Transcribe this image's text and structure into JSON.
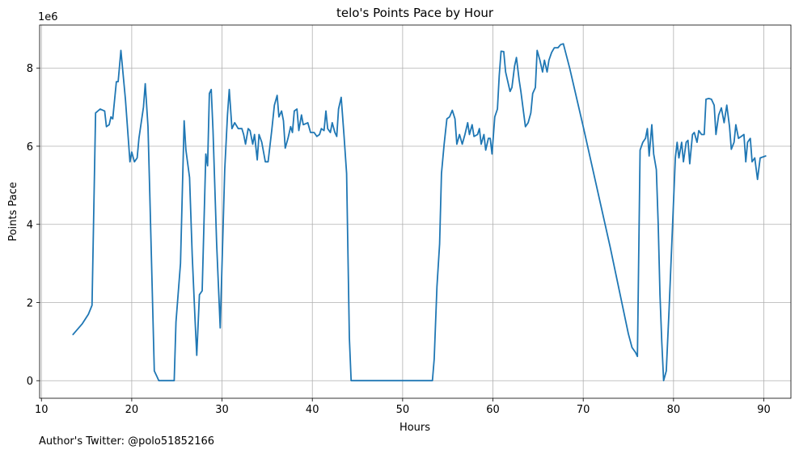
{
  "chart_data": {
    "type": "line",
    "title": "telo's Points Pace by Hour",
    "xlabel": "Hours",
    "ylabel": "Points Pace",
    "y_scale_label": "1e6",
    "xlim": [
      9.8,
      93.0
    ],
    "ylim": [
      -0.45,
      9.1
    ],
    "x_ticks": [
      10,
      20,
      30,
      40,
      50,
      60,
      70,
      80,
      90
    ],
    "y_ticks": [
      0,
      2,
      4,
      6,
      8
    ],
    "grid": true,
    "line_color": "#1f77b4",
    "series": [
      {
        "values_unit": "millions",
        "points": [
          [
            13.5,
            1.18
          ],
          [
            14.5,
            1.45
          ],
          [
            15.2,
            1.7
          ],
          [
            15.6,
            1.93
          ],
          [
            16.0,
            6.85
          ],
          [
            16.5,
            6.95
          ],
          [
            17.0,
            6.9
          ],
          [
            17.2,
            6.5
          ],
          [
            17.5,
            6.55
          ],
          [
            17.7,
            6.75
          ],
          [
            17.9,
            6.7
          ],
          [
            18.3,
            7.65
          ],
          [
            18.5,
            7.65
          ],
          [
            18.8,
            8.45
          ],
          [
            19.3,
            7.2
          ],
          [
            19.8,
            5.6
          ],
          [
            20.0,
            5.85
          ],
          [
            20.3,
            5.6
          ],
          [
            20.6,
            5.7
          ],
          [
            20.8,
            6.2
          ],
          [
            21.3,
            7.0
          ],
          [
            21.5,
            7.6
          ],
          [
            21.8,
            6.5
          ],
          [
            22.0,
            4.8
          ],
          [
            22.5,
            0.25
          ],
          [
            22.8,
            0.1
          ],
          [
            23.0,
            0.0
          ],
          [
            24.0,
            0.0
          ],
          [
            24.7,
            0.0
          ],
          [
            24.9,
            1.5
          ],
          [
            25.4,
            3.0
          ],
          [
            25.8,
            6.65
          ],
          [
            26.0,
            5.9
          ],
          [
            26.4,
            5.2
          ],
          [
            26.7,
            3.2
          ],
          [
            27.0,
            1.6
          ],
          [
            27.2,
            0.65
          ],
          [
            27.5,
            2.2
          ],
          [
            27.8,
            2.3
          ],
          [
            28.2,
            5.8
          ],
          [
            28.4,
            5.5
          ],
          [
            28.6,
            7.35
          ],
          [
            28.8,
            7.45
          ],
          [
            29.0,
            6.4
          ],
          [
            29.4,
            3.5
          ],
          [
            29.8,
            1.35
          ],
          [
            30.3,
            5.4
          ],
          [
            30.6,
            6.8
          ],
          [
            30.8,
            7.45
          ],
          [
            31.1,
            6.45
          ],
          [
            31.4,
            6.6
          ],
          [
            31.8,
            6.45
          ],
          [
            32.2,
            6.45
          ],
          [
            32.4,
            6.3
          ],
          [
            32.6,
            6.05
          ],
          [
            32.9,
            6.45
          ],
          [
            33.1,
            6.4
          ],
          [
            33.4,
            6.05
          ],
          [
            33.6,
            6.3
          ],
          [
            33.9,
            5.65
          ],
          [
            34.1,
            6.3
          ],
          [
            34.4,
            6.1
          ],
          [
            34.8,
            5.6
          ],
          [
            35.1,
            5.6
          ],
          [
            35.5,
            6.4
          ],
          [
            35.8,
            7.05
          ],
          [
            36.1,
            7.3
          ],
          [
            36.3,
            6.75
          ],
          [
            36.6,
            6.9
          ],
          [
            36.8,
            6.65
          ],
          [
            37.0,
            5.95
          ],
          [
            37.3,
            6.2
          ],
          [
            37.6,
            6.5
          ],
          [
            37.8,
            6.35
          ],
          [
            38.0,
            6.9
          ],
          [
            38.3,
            6.95
          ],
          [
            38.5,
            6.4
          ],
          [
            38.8,
            6.8
          ],
          [
            39.0,
            6.55
          ],
          [
            39.5,
            6.6
          ],
          [
            39.8,
            6.35
          ],
          [
            40.2,
            6.35
          ],
          [
            40.5,
            6.25
          ],
          [
            40.8,
            6.3
          ],
          [
            41.0,
            6.45
          ],
          [
            41.3,
            6.4
          ],
          [
            41.5,
            6.9
          ],
          [
            41.7,
            6.45
          ],
          [
            42.0,
            6.35
          ],
          [
            42.2,
            6.6
          ],
          [
            42.5,
            6.35
          ],
          [
            42.7,
            6.25
          ],
          [
            42.9,
            6.95
          ],
          [
            43.2,
            7.25
          ],
          [
            43.5,
            6.3
          ],
          [
            43.8,
            5.3
          ],
          [
            44.1,
            1.1
          ],
          [
            44.3,
            0.0
          ],
          [
            50.0,
            0.0
          ],
          [
            53.3,
            0.0
          ],
          [
            53.5,
            0.55
          ],
          [
            53.8,
            2.4
          ],
          [
            54.1,
            3.5
          ],
          [
            54.3,
            5.3
          ],
          [
            54.6,
            6.05
          ],
          [
            54.9,
            6.7
          ],
          [
            55.2,
            6.75
          ],
          [
            55.5,
            6.92
          ],
          [
            55.8,
            6.7
          ],
          [
            56.0,
            6.05
          ],
          [
            56.3,
            6.3
          ],
          [
            56.6,
            6.05
          ],
          [
            56.9,
            6.3
          ],
          [
            57.2,
            6.6
          ],
          [
            57.4,
            6.3
          ],
          [
            57.7,
            6.55
          ],
          [
            57.9,
            6.25
          ],
          [
            58.3,
            6.3
          ],
          [
            58.5,
            6.45
          ],
          [
            58.7,
            6.05
          ],
          [
            59.0,
            6.3
          ],
          [
            59.2,
            5.9
          ],
          [
            59.5,
            6.2
          ],
          [
            59.7,
            6.2
          ],
          [
            59.9,
            5.8
          ],
          [
            60.2,
            6.75
          ],
          [
            60.5,
            6.95
          ],
          [
            60.7,
            7.8
          ],
          [
            60.9,
            8.43
          ],
          [
            61.2,
            8.42
          ],
          [
            61.4,
            7.9
          ],
          [
            61.9,
            7.4
          ],
          [
            62.1,
            7.5
          ],
          [
            62.4,
            8.05
          ],
          [
            62.6,
            8.27
          ],
          [
            62.9,
            7.7
          ],
          [
            63.1,
            7.4
          ],
          [
            63.4,
            6.85
          ],
          [
            63.6,
            6.5
          ],
          [
            63.9,
            6.6
          ],
          [
            64.2,
            6.85
          ],
          [
            64.4,
            7.35
          ],
          [
            64.7,
            7.5
          ],
          [
            64.9,
            8.45
          ],
          [
            65.2,
            8.2
          ],
          [
            65.5,
            7.9
          ],
          [
            65.7,
            8.2
          ],
          [
            66.0,
            7.9
          ],
          [
            66.2,
            8.2
          ],
          [
            66.5,
            8.4
          ],
          [
            66.8,
            8.52
          ],
          [
            67.2,
            8.52
          ],
          [
            67.5,
            8.6
          ],
          [
            67.8,
            8.62
          ],
          [
            68.5,
            8.0
          ],
          [
            70.0,
            6.5
          ],
          [
            73.0,
            3.4
          ],
          [
            75.0,
            1.2
          ],
          [
            75.4,
            0.85
          ],
          [
            75.8,
            0.72
          ],
          [
            76.0,
            0.62
          ],
          [
            76.3,
            5.9
          ],
          [
            76.6,
            6.1
          ],
          [
            76.9,
            6.2
          ],
          [
            77.1,
            6.45
          ],
          [
            77.3,
            5.75
          ],
          [
            77.6,
            6.55
          ],
          [
            77.8,
            5.8
          ],
          [
            78.1,
            5.4
          ],
          [
            78.3,
            4.0
          ],
          [
            78.5,
            2.2
          ],
          [
            78.7,
            1.0
          ],
          [
            78.9,
            0.0
          ],
          [
            79.2,
            0.25
          ],
          [
            79.5,
            1.8
          ],
          [
            79.9,
            4.0
          ],
          [
            80.2,
            5.7
          ],
          [
            80.4,
            6.1
          ],
          [
            80.6,
            5.7
          ],
          [
            80.9,
            6.1
          ],
          [
            81.1,
            5.6
          ],
          [
            81.4,
            6.1
          ],
          [
            81.6,
            6.15
          ],
          [
            81.8,
            5.55
          ],
          [
            82.1,
            6.3
          ],
          [
            82.3,
            6.35
          ],
          [
            82.6,
            6.1
          ],
          [
            82.8,
            6.4
          ],
          [
            83.1,
            6.3
          ],
          [
            83.4,
            6.3
          ],
          [
            83.6,
            7.2
          ],
          [
            83.9,
            7.22
          ],
          [
            84.2,
            7.2
          ],
          [
            84.5,
            7.05
          ],
          [
            84.7,
            6.3
          ],
          [
            85.0,
            6.8
          ],
          [
            85.3,
            6.98
          ],
          [
            85.6,
            6.6
          ],
          [
            85.9,
            7.05
          ],
          [
            86.2,
            6.5
          ],
          [
            86.4,
            5.92
          ],
          [
            86.7,
            6.1
          ],
          [
            86.9,
            6.55
          ],
          [
            87.2,
            6.2
          ],
          [
            87.5,
            6.25
          ],
          [
            87.8,
            6.3
          ],
          [
            88.0,
            5.6
          ],
          [
            88.2,
            6.1
          ],
          [
            88.5,
            6.2
          ],
          [
            88.7,
            5.6
          ],
          [
            89.0,
            5.7
          ],
          [
            89.3,
            5.15
          ],
          [
            89.6,
            5.7
          ],
          [
            90.2,
            5.75
          ]
        ]
      }
    ]
  },
  "footnote": "Author's Twitter: @polo51852166"
}
